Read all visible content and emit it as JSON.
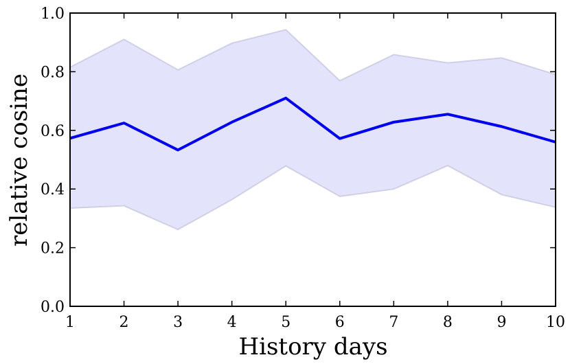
{
  "chart_data": {
    "type": "line",
    "xlabel": "History days",
    "ylabel": "relative cosine",
    "xlim": [
      1,
      10
    ],
    "ylim": [
      0.0,
      1.0
    ],
    "x_ticks": [
      1,
      2,
      3,
      4,
      5,
      6,
      7,
      8,
      9,
      10
    ],
    "y_ticks": [
      0.0,
      0.2,
      0.4,
      0.6,
      0.8,
      1.0
    ],
    "x_tick_labels": [
      "1",
      "2",
      "3",
      "4",
      "5",
      "6",
      "7",
      "8",
      "9",
      "10"
    ],
    "y_tick_labels": [
      "0.0",
      "0.2",
      "0.4",
      "0.6",
      "0.8",
      "1.0"
    ],
    "x": [
      1,
      2,
      3,
      4,
      5,
      6,
      7,
      8,
      9,
      10
    ],
    "series": [
      {
        "values": [
          0.573,
          0.625,
          0.533,
          0.628,
          0.71,
          0.572,
          0.628,
          0.655,
          0.613,
          0.56
        ],
        "color": "#0000ee"
      }
    ],
    "band": {
      "upper": [
        0.815,
        0.91,
        0.806,
        0.897,
        0.943,
        0.769,
        0.858,
        0.83,
        0.847,
        0.79
      ],
      "lower": [
        0.335,
        0.343,
        0.262,
        0.364,
        0.479,
        0.375,
        0.4,
        0.48,
        0.381,
        0.338
      ],
      "fill_color": "#e3e3fb",
      "edge_color": "#cfcfe6"
    },
    "grid": false
  }
}
